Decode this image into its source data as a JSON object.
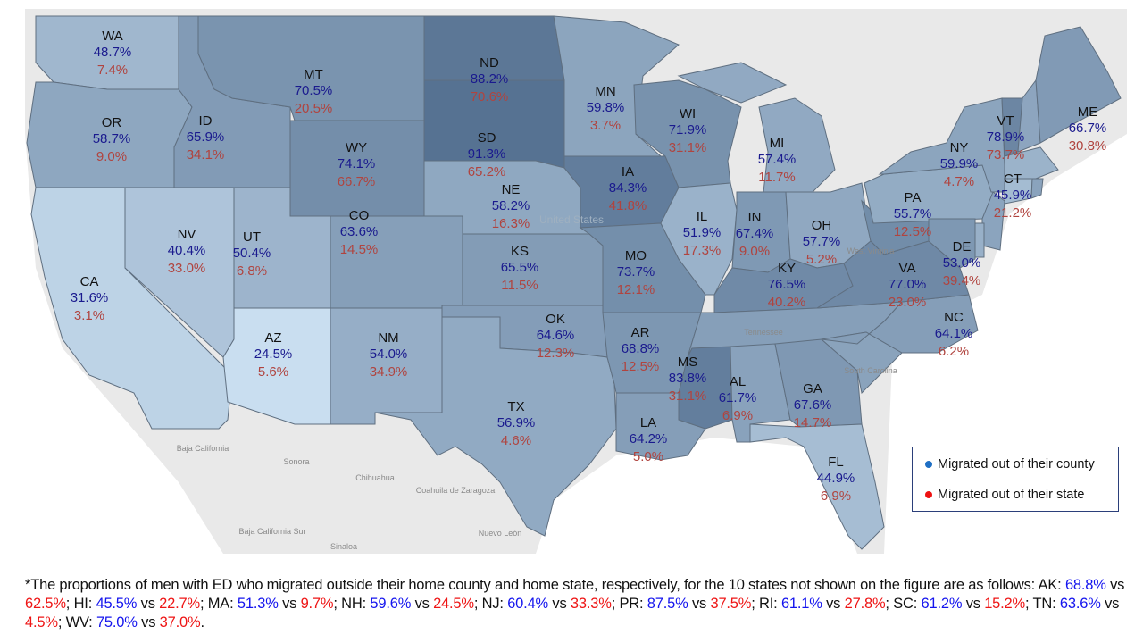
{
  "map": {
    "colors": {
      "low": "#cadff1",
      "high": "#557191",
      "county_text": "#1a1a8e",
      "state_text": "#b0443f",
      "land": "#e9e9e9",
      "border": "#5f6f80"
    },
    "basemap_labels": [
      "United States",
      "Baja California",
      "Sonora",
      "Chihuahua",
      "Coahuila de Zaragoza",
      "Baja California Sur",
      "Sinaloa",
      "Nuevo León",
      "Tennessee",
      "West Virginia",
      "South Carolina"
    ],
    "states": [
      {
        "abbr": "WA",
        "county": "48.7%",
        "state": "7.4%"
      },
      {
        "abbr": "MT",
        "county": "70.5%",
        "state": "20.5%"
      },
      {
        "abbr": "ND",
        "county": "88.2%",
        "state": "70.6%"
      },
      {
        "abbr": "MN",
        "county": "59.8%",
        "state": "3.7%"
      },
      {
        "abbr": "ME",
        "county": "66.7%",
        "state": "30.8%"
      },
      {
        "abbr": "OR",
        "county": "58.7%",
        "state": "9.0%"
      },
      {
        "abbr": "ID",
        "county": "65.9%",
        "state": "34.1%"
      },
      {
        "abbr": "SD",
        "county": "91.3%",
        "state": "65.2%"
      },
      {
        "abbr": "WI",
        "county": "71.9%",
        "state": "31.1%"
      },
      {
        "abbr": "VT",
        "county": "78.9%",
        "state": "73.7%"
      },
      {
        "abbr": "WY",
        "county": "74.1%",
        "state": "66.7%"
      },
      {
        "abbr": "MI",
        "county": "57.4%",
        "state": "11.7%"
      },
      {
        "abbr": "NY",
        "county": "59.9%",
        "state": "4.7%"
      },
      {
        "abbr": "IA",
        "county": "84.3%",
        "state": "41.8%"
      },
      {
        "abbr": "NE",
        "county": "58.2%",
        "state": "16.3%"
      },
      {
        "abbr": "CT",
        "county": "45.9%",
        "state": "21.2%"
      },
      {
        "abbr": "PA",
        "county": "55.7%",
        "state": "12.5%"
      },
      {
        "abbr": "NV",
        "county": "40.4%",
        "state": "33.0%"
      },
      {
        "abbr": "UT",
        "county": "50.4%",
        "state": "6.8%"
      },
      {
        "abbr": "CO",
        "county": "63.6%",
        "state": "14.5%"
      },
      {
        "abbr": "KS",
        "county": "65.5%",
        "state": "11.5%"
      },
      {
        "abbr": "IL",
        "county": "51.9%",
        "state": "17.3%"
      },
      {
        "abbr": "IN",
        "county": "67.4%",
        "state": "9.0%"
      },
      {
        "abbr": "OH",
        "county": "57.7%",
        "state": "5.2%"
      },
      {
        "abbr": "DE",
        "county": "53.0%",
        "state": "39.4%"
      },
      {
        "abbr": "MO",
        "county": "73.7%",
        "state": "12.1%"
      },
      {
        "abbr": "KY",
        "county": "76.5%",
        "state": "40.2%"
      },
      {
        "abbr": "VA",
        "county": "77.0%",
        "state": "23.0%"
      },
      {
        "abbr": "CA",
        "county": "31.6%",
        "state": "3.1%"
      },
      {
        "abbr": "OK",
        "county": "64.6%",
        "state": "12.3%"
      },
      {
        "abbr": "NC",
        "county": "64.1%",
        "state": "6.2%"
      },
      {
        "abbr": "AZ",
        "county": "24.5%",
        "state": "5.6%"
      },
      {
        "abbr": "NM",
        "county": "54.0%",
        "state": "34.9%"
      },
      {
        "abbr": "AR",
        "county": "68.8%",
        "state": "12.5%"
      },
      {
        "abbr": "TX",
        "county": "56.9%",
        "state": "4.6%"
      },
      {
        "abbr": "MS",
        "county": "83.8%",
        "state": "31.1%"
      },
      {
        "abbr": "AL",
        "county": "61.7%",
        "state": "6.9%"
      },
      {
        "abbr": "GA",
        "county": "67.6%",
        "state": "14.7%"
      },
      {
        "abbr": "LA",
        "county": "64.2%",
        "state": "5.0%"
      },
      {
        "abbr": "FL",
        "county": "44.9%",
        "state": "6.9%"
      }
    ]
  },
  "legend": {
    "items": [
      {
        "label": "Migrated out of their county",
        "color": "#1f6fc4"
      },
      {
        "label": "Migrated out of their state",
        "color": "#ee1111"
      }
    ]
  },
  "footnote": {
    "intro": "*The proportions of men with ED who migrated outside their home county and home state, respectively, for the 10 states not shown on the figure are as follows: ",
    "vs": "vs",
    "entries": [
      {
        "abbr": "AK",
        "county": "68.8%",
        "state": "62.5%"
      },
      {
        "abbr": "HI",
        "county": "45.5%",
        "state": "22.7%"
      },
      {
        "abbr": "MA",
        "county": "51.3%",
        "state": "9.7%"
      },
      {
        "abbr": "NH",
        "county": "59.6%",
        "state": "24.5%"
      },
      {
        "abbr": "NJ",
        "county": "60.4%",
        "state": "33.3%"
      },
      {
        "abbr": "PR",
        "county": "87.5%",
        "state": "37.5%"
      },
      {
        "abbr": "RI",
        "county": "61.1%",
        "state": "27.8%"
      },
      {
        "abbr": "SC",
        "county": "61.2%",
        "state": "15.2%"
      },
      {
        "abbr": "TN",
        "county": "63.6%",
        "state": "4.5%"
      },
      {
        "abbr": "WV",
        "county": "75.0%",
        "state": "37.0%"
      }
    ]
  }
}
